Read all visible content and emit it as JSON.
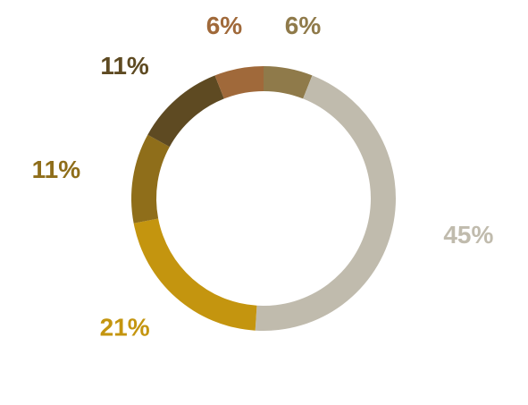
{
  "chart_data": {
    "type": "donut",
    "values": [
      6,
      45,
      21,
      11,
      11,
      6
    ],
    "value_labels": [
      "6%",
      "45%",
      "21%",
      "11%",
      "11%",
      "6%"
    ],
    "colors": [
      "#8f7a4a",
      "#c0bbad",
      "#c4950f",
      "#8f6e1a",
      "#5e4a22",
      "#a0693a"
    ]
  }
}
